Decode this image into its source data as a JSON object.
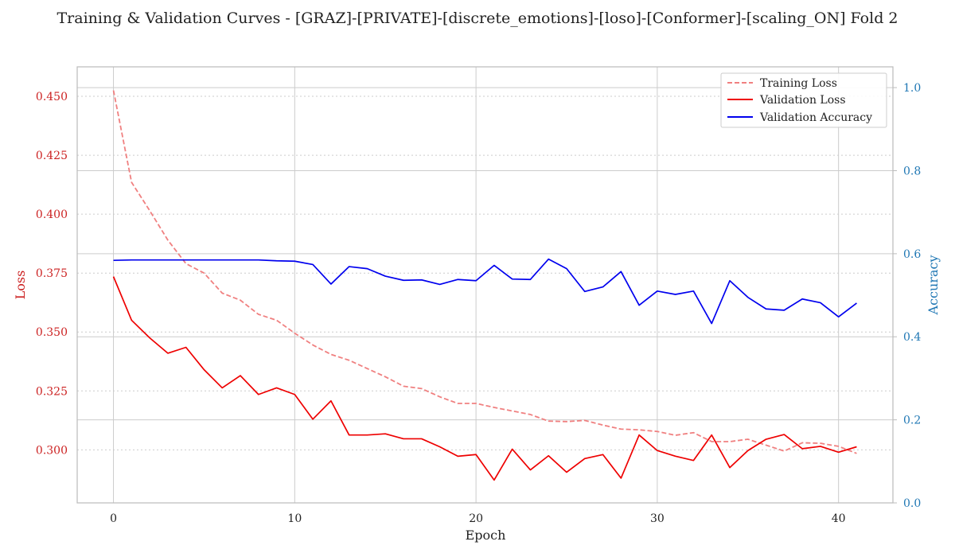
{
  "chart_data": {
    "type": "line",
    "title": "Training & Validation Curves - [GRAZ]-[PRIVATE]-[discrete_emotions]-[loso]-[Conformer]-[scaling_ON] Fold 2",
    "xlabel": "Epoch",
    "ylabel_left": "Loss",
    "ylabel_right": "Accuracy",
    "xlim": [
      -2,
      43
    ],
    "ylim_left": [
      0.2775,
      0.4625
    ],
    "ylim_right": [
      0.0,
      1.05
    ],
    "x_ticks": [
      0,
      10,
      20,
      30,
      40
    ],
    "y_left_ticks": [
      "0.300",
      "0.325",
      "0.350",
      "0.375",
      "0.400",
      "0.425",
      "0.450"
    ],
    "y_right_ticks": [
      "0.0",
      "0.2",
      "0.4",
      "0.6",
      "0.8",
      "1.0"
    ],
    "grid": true,
    "legend_position": "top-right",
    "x": [
      0,
      1,
      2,
      3,
      4,
      5,
      6,
      7,
      8,
      9,
      10,
      11,
      12,
      13,
      14,
      15,
      16,
      17,
      18,
      19,
      20,
      21,
      22,
      23,
      24,
      25,
      26,
      27,
      28,
      29,
      30,
      31,
      32,
      33,
      34,
      35,
      36,
      37,
      38,
      39,
      40,
      41
    ],
    "series": [
      {
        "name": "Training Loss",
        "axis": "left",
        "style": "dashed",
        "color": "#f08080",
        "values": [
          0.4525,
          0.4135,
          0.4015,
          0.389,
          0.379,
          0.375,
          0.3665,
          0.3635,
          0.3575,
          0.355,
          0.3495,
          0.3445,
          0.3405,
          0.338,
          0.3345,
          0.331,
          0.327,
          0.326,
          0.3225,
          0.3197,
          0.3197,
          0.318,
          0.3165,
          0.315,
          0.3122,
          0.312,
          0.3125,
          0.3105,
          0.3088,
          0.3085,
          0.3078,
          0.3062,
          0.3073,
          0.3035,
          0.3035,
          0.3045,
          0.302,
          0.2995,
          0.303,
          0.3028,
          0.3015,
          0.2985
        ]
      },
      {
        "name": "Validation Loss",
        "axis": "left",
        "style": "solid",
        "color": "#ee0000",
        "values": [
          0.3735,
          0.355,
          0.3475,
          0.341,
          0.3435,
          0.334,
          0.3263,
          0.3315,
          0.3235,
          0.3263,
          0.3235,
          0.313,
          0.3208,
          0.3063,
          0.3063,
          0.3068,
          0.3047,
          0.3047,
          0.3013,
          0.2973,
          0.298,
          0.2872,
          0.3003,
          0.2915,
          0.2975,
          0.2905,
          0.2963,
          0.298,
          0.288,
          0.3063,
          0.2997,
          0.2973,
          0.2955,
          0.3063,
          0.2925,
          0.2997,
          0.3045,
          0.3065,
          0.3005,
          0.3015,
          0.299,
          0.3013
        ]
      },
      {
        "name": "Validation Accuracy",
        "axis": "right",
        "style": "solid",
        "color": "#0000ee",
        "values": [
          0.584,
          0.585,
          0.585,
          0.585,
          0.585,
          0.585,
          0.585,
          0.585,
          0.585,
          0.583,
          0.582,
          0.574,
          0.527,
          0.569,
          0.564,
          0.546,
          0.536,
          0.537,
          0.526,
          0.538,
          0.535,
          0.572,
          0.539,
          0.538,
          0.587,
          0.564,
          0.509,
          0.52,
          0.557,
          0.476,
          0.51,
          0.502,
          0.51,
          0.432,
          0.535,
          0.495,
          0.467,
          0.464,
          0.491,
          0.482,
          0.448,
          0.481
        ]
      }
    ]
  },
  "colors": {
    "left_axis": "#cc2222",
    "right_axis": "#1f77b4",
    "grid": "#cccccc",
    "spine": "#bbbbbb"
  }
}
